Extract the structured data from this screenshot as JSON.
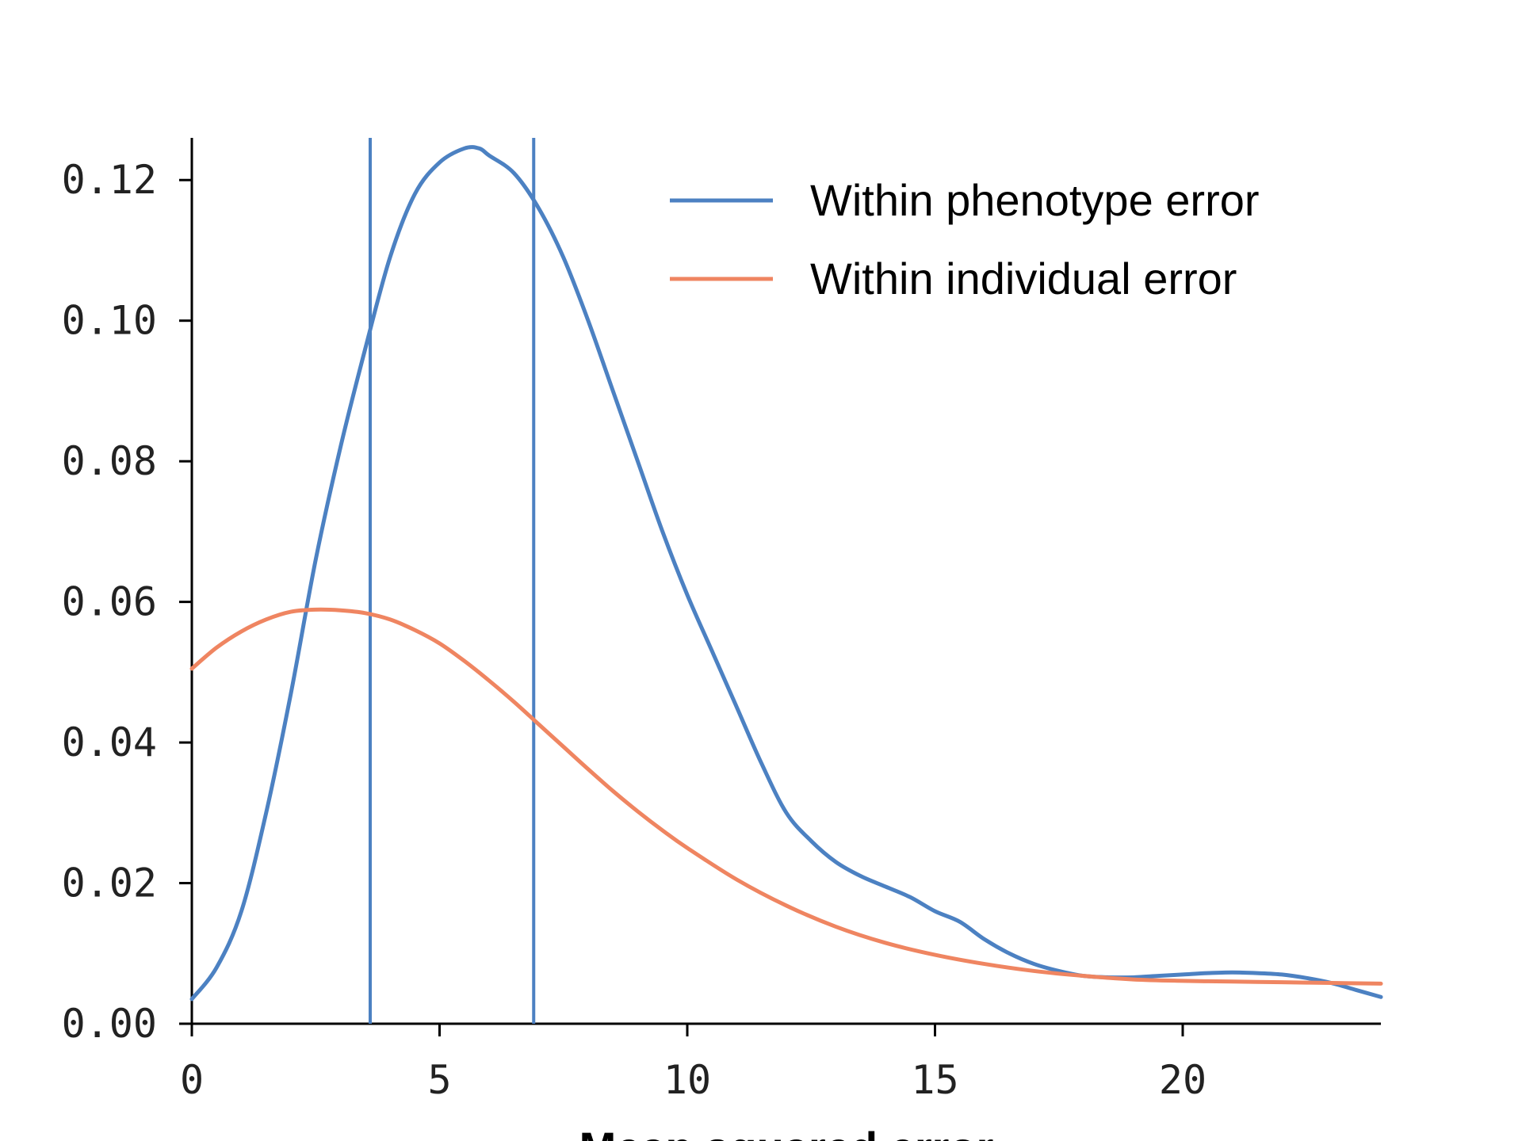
{
  "chart_data": {
    "type": "line",
    "title": "",
    "xlabel": "Mean squared error",
    "ylabel": "",
    "xlim": [
      0,
      24
    ],
    "ylim": [
      0,
      0.126
    ],
    "x_ticks": [
      0,
      5,
      10,
      15,
      20
    ],
    "x_tick_labels": [
      "0",
      "5",
      "10",
      "15",
      "20"
    ],
    "y_ticks": [
      0.0,
      0.02,
      0.04,
      0.06,
      0.08,
      0.1,
      0.12
    ],
    "y_tick_labels": [
      "0.00",
      "0.02",
      "0.04",
      "0.06",
      "0.08",
      "0.10",
      "0.12"
    ],
    "grid": false,
    "legend_position": "top-right",
    "series": [
      {
        "name": "Within phenotype error",
        "color": "#4c81c2",
        "x": [
          0,
          0.5,
          1,
          1.5,
          2,
          2.5,
          3,
          3.5,
          4,
          4.5,
          5,
          5.5,
          5.8,
          6,
          6.5,
          7,
          7.5,
          8,
          8.5,
          9,
          9.5,
          10,
          10.5,
          11,
          11.5,
          12,
          12.5,
          13,
          13.5,
          14,
          14.5,
          15,
          15.5,
          16,
          16.5,
          17,
          17.5,
          18,
          18.5,
          19,
          19.5,
          20,
          20.5,
          21,
          21.5,
          22,
          22.5,
          23,
          23.5,
          24
        ],
        "values": [
          0.0035,
          0.008,
          0.016,
          0.03,
          0.047,
          0.066,
          0.082,
          0.096,
          0.109,
          0.118,
          0.1225,
          0.1245,
          0.1245,
          0.1235,
          0.121,
          0.116,
          0.109,
          0.1,
          0.09,
          0.08,
          0.07,
          0.061,
          0.053,
          0.045,
          0.037,
          0.03,
          0.026,
          0.023,
          0.021,
          0.0195,
          0.018,
          0.016,
          0.0145,
          0.012,
          0.01,
          0.0085,
          0.0075,
          0.0068,
          0.0066,
          0.0066,
          0.0068,
          0.007,
          0.0072,
          0.0073,
          0.0072,
          0.007,
          0.0065,
          0.0058,
          0.0048,
          0.0038
        ]
      },
      {
        "name": "Within individual error",
        "color": "#ef8561",
        "x": [
          0,
          0.5,
          1,
          1.5,
          2,
          2.5,
          3,
          3.5,
          4,
          4.5,
          5,
          5.5,
          6,
          6.5,
          7,
          7.5,
          8,
          8.5,
          9,
          9.5,
          10,
          11,
          12,
          13,
          14,
          15,
          16,
          17,
          18,
          19,
          20,
          21,
          22,
          23,
          24
        ],
        "values": [
          0.0505,
          0.0535,
          0.0558,
          0.0575,
          0.0586,
          0.0589,
          0.0588,
          0.0584,
          0.0575,
          0.056,
          0.0541,
          0.0516,
          0.0488,
          0.0458,
          0.0426,
          0.0394,
          0.0362,
          0.0331,
          0.0302,
          0.0275,
          0.025,
          0.0205,
          0.0168,
          0.0138,
          0.0115,
          0.0098,
          0.0085,
          0.0075,
          0.0068,
          0.0063,
          0.0061,
          0.006,
          0.0059,
          0.0058,
          0.0057
        ]
      }
    ],
    "vertical_lines": [
      {
        "x": 3.6,
        "color": "#4c81c2"
      },
      {
        "x": 6.9,
        "color": "#4c81c2"
      }
    ]
  }
}
